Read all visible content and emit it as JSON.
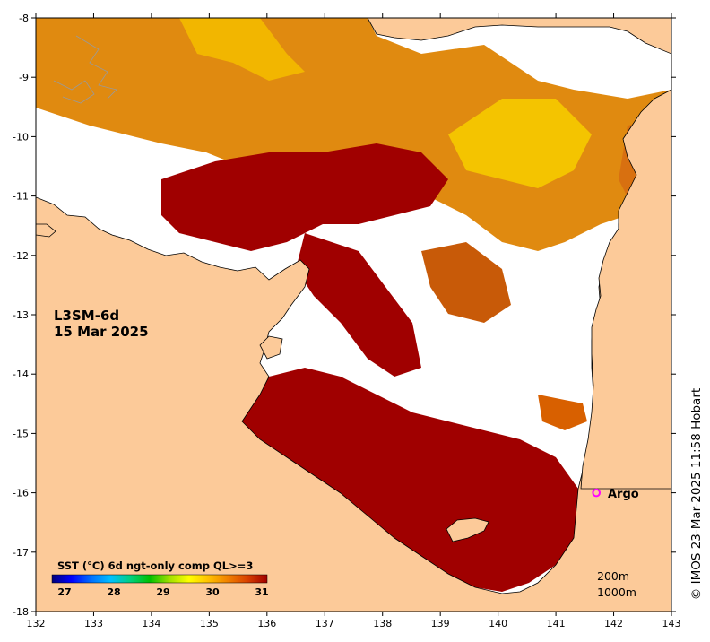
{
  "map": {
    "panel": {
      "product": "L3SM-6d",
      "date": "15 Mar 2025"
    },
    "x_ticks": [
      "132",
      "133",
      "134",
      "135",
      "136",
      "137",
      "138",
      "139",
      "140",
      "141",
      "142",
      "143"
    ],
    "y_ticks": [
      "-8",
      "-9",
      "-10",
      "-11",
      "-12",
      "-13",
      "-14",
      "-15",
      "-16",
      "-17",
      "-18"
    ],
    "colorbar": {
      "title": "SST (°C) 6d ngt-only comp QL>=3",
      "ticks": [
        "27",
        "28",
        "29",
        "30",
        "31"
      ],
      "colors": [
        "#00007a",
        "#0000ff",
        "#0070ff",
        "#00c0ff",
        "#00d080",
        "#00c000",
        "#a0e000",
        "#ffff00",
        "#ffc000",
        "#f08000",
        "#d84000",
        "#a00000"
      ]
    },
    "legend": {
      "contour_200": "200m",
      "contour_1000": "1000m"
    },
    "argo": {
      "label": "Argo",
      "color": "#ff00ff",
      "lon": 141.7,
      "lat": -16.0
    },
    "credit": "© IMOS 23-Mar-2025 11:58 Hobart",
    "colors": {
      "land": "#fcca99",
      "ocean_nodata": "#ffffff",
      "sst_warm": "#a00000",
      "sst_mid": "#c85000",
      "sst_cool": "#f0a000"
    },
    "extent": {
      "lon_min": 132,
      "lon_max": 143,
      "lat_min": -18,
      "lat_max": -8
    }
  }
}
